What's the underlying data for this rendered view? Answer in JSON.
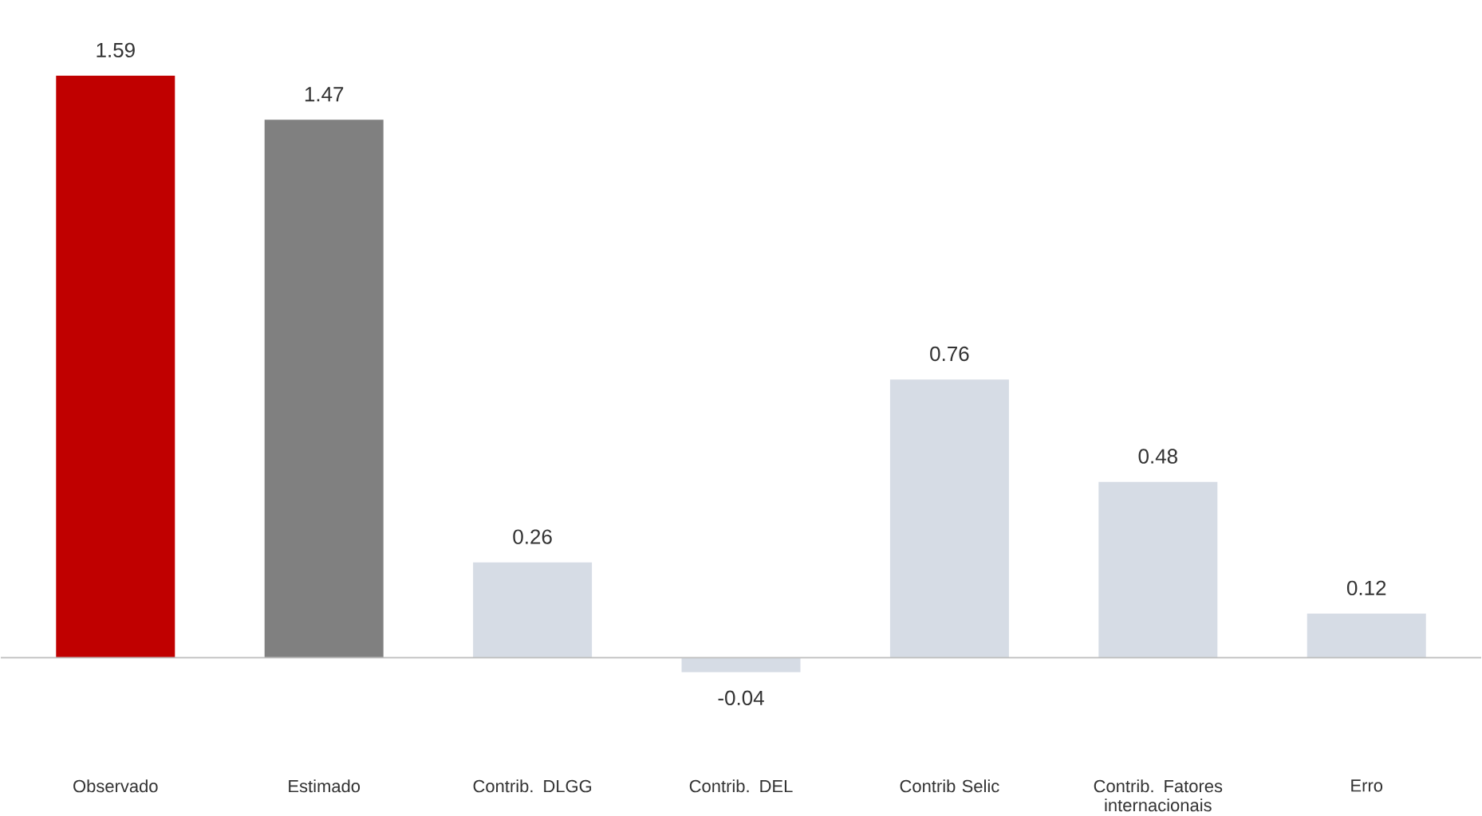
{
  "chart_data": {
    "type": "bar",
    "categories": [
      "Observado",
      "Estimado",
      "Contrib. DLGG",
      "Contrib. DEL",
      "Contrib Selic",
      "Contrib. Fatores internacionais",
      "Erro"
    ],
    "values": [
      1.59,
      1.47,
      0.26,
      -0.04,
      0.76,
      0.48,
      0.12
    ],
    "colors": [
      "#c00000",
      "#808080",
      "#d6dce5",
      "#d6dce5",
      "#d6dce5",
      "#d6dce5",
      "#d6dce5"
    ],
    "data_labels": true
  }
}
